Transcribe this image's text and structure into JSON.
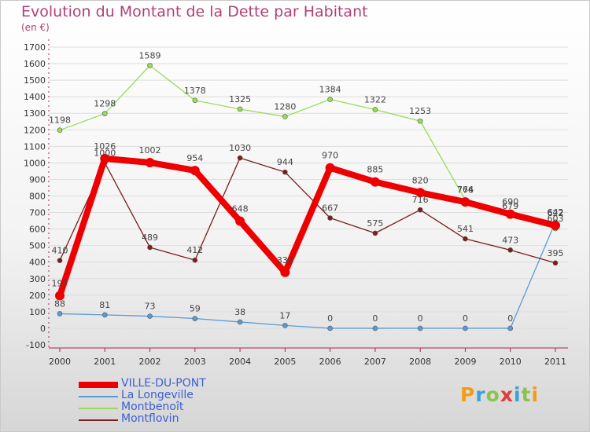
{
  "title": "Evolution du Montant de la Dette par Habitant",
  "subtitle": "(en €)",
  "logo": "Proxiti",
  "colors": {
    "title": "#b13f78",
    "axis_text": "#333333",
    "grid": "#dddddd",
    "legend_text": "#3a5fd6"
  },
  "chart_data": {
    "type": "line",
    "title": "Evolution du Montant de la Dette par Habitant",
    "ylabel": "(en €)",
    "xlabel": "",
    "x": [
      "2000",
      "2001",
      "2002",
      "2003",
      "2004",
      "2005",
      "2006",
      "2007",
      "2008",
      "2009",
      "2010",
      "2011"
    ],
    "ylim": [
      -100,
      1700
    ],
    "yticks": [
      -100,
      0,
      100,
      200,
      300,
      400,
      500,
      600,
      700,
      800,
      900,
      1000,
      1100,
      1200,
      1300,
      1400,
      1500,
      1600,
      1700
    ],
    "grid": true,
    "legend_position": "bottom-left",
    "series": [
      {
        "name": "VILLE-DU-PONT",
        "color": "#ee0000",
        "values": [
          197,
          1026,
          1002,
          954,
          648,
          338,
          970,
          885,
          820,
          764,
          690,
          622
        ],
        "labels": [
          "197",
          "1026",
          "1002",
          "954",
          "648",
          "338",
          "970",
          "885",
          "820",
          "764",
          "690",
          "622"
        ]
      },
      {
        "name": "La Longeville",
        "color": "#5b9bd5",
        "values": [
          88,
          81,
          73,
          59,
          38,
          17,
          0,
          0,
          0,
          0,
          0,
          642
        ],
        "labels": [
          "88",
          "81",
          "73",
          "59",
          "38",
          "17",
          "0",
          "0",
          "0",
          "0",
          "0",
          "642"
        ]
      },
      {
        "name": "Montbenoît",
        "color": "#99dd55",
        "values": [
          1198,
          1298,
          1589,
          1378,
          1325,
          1280,
          1384,
          1322,
          1253,
          776,
          679,
          603
        ],
        "labels": [
          "1198",
          "1298",
          "1589",
          "1378",
          "1325",
          "1280",
          "1384",
          "1322",
          "1253",
          "776",
          "679",
          "603"
        ]
      },
      {
        "name": "Montflovin",
        "color": "#7a1e1e",
        "values": [
          410,
          1000,
          489,
          412,
          1030,
          944,
          667,
          575,
          716,
          541,
          473,
          395
        ],
        "labels": [
          "410",
          "1000",
          "489",
          "412",
          "1030",
          "944",
          "667",
          "575",
          "716",
          "541",
          "473",
          "395"
        ]
      }
    ]
  }
}
